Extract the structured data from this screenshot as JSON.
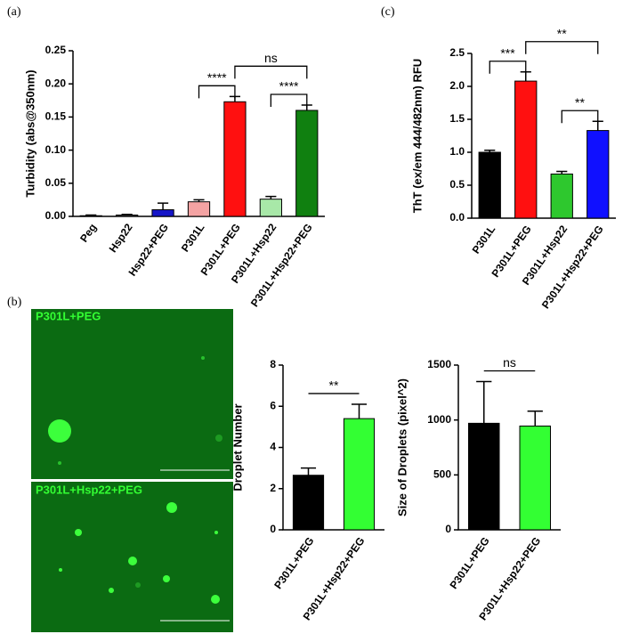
{
  "chart_data": [
    {
      "type": "bar",
      "panel": "(a)",
      "ylabel": "Turbidity (abs@350nm)",
      "categories": [
        "Peg",
        "Hsp22",
        "Hsp22+PEG",
        "P301L",
        "P301L+PEG",
        "P301L+Hsp22",
        "P301L+Hsp22+PEG"
      ],
      "values": [
        0.001,
        0.002,
        0.01,
        0.022,
        0.173,
        0.026,
        0.16
      ],
      "errors": [
        0.001,
        0.001,
        0.01,
        0.003,
        0.008,
        0.004,
        0.008
      ],
      "colors": [
        "#555555",
        "#555555",
        "#1515c8",
        "#f4a3a3",
        "#ff1010",
        "#a8e8a8",
        "#108010"
      ],
      "ylim": [
        0,
        0.25
      ],
      "yticks": [
        {
          "value": 0,
          "label": "0.00"
        },
        0.05,
        {
          "value": 0.1,
          "label": "0.10"
        },
        0.15,
        {
          "value": 0.2,
          "label": "0.20"
        },
        0.25
      ],
      "annotations": [
        {
          "text": "****",
          "between": [
            "P301L",
            "P301L+PEG"
          ]
        },
        {
          "text": "****",
          "between": [
            "P301L+Hsp22",
            "P301L+Hsp22+PEG"
          ]
        },
        {
          "text": "ns",
          "between": [
            "P301L+PEG",
            "P301L+Hsp22+PEG"
          ]
        }
      ]
    },
    {
      "type": "bar",
      "panel": "(c)",
      "ylabel": "ThT (ex/em 444/482nm) RFU",
      "categories": [
        "P301L",
        "P301L+PEG",
        "P301L+Hsp22",
        "P301L+Hsp22+PEG"
      ],
      "values": [
        1.0,
        2.08,
        0.67,
        1.33
      ],
      "errors": [
        0.03,
        0.14,
        0.04,
        0.14
      ],
      "colors": [
        "#000000",
        "#ff1010",
        "#2ec82e",
        "#1010ff"
      ],
      "ylim": [
        0,
        2.5
      ],
      "yticks": [
        {
          "value": 0,
          "label": "0.0"
        },
        0.5,
        {
          "value": 1,
          "label": "1.0"
        },
        1.5,
        {
          "value": 2,
          "label": "2.0"
        },
        2.5
      ],
      "annotations": [
        {
          "text": "***",
          "between": [
            "P301L",
            "P301L+PEG"
          ]
        },
        {
          "text": "**",
          "between": [
            "P301L+Hsp22",
            "P301L+Hsp22+PEG"
          ]
        },
        {
          "text": "**",
          "between": [
            "P301L+PEG",
            "P301L+Hsp22+PEG"
          ]
        }
      ]
    },
    {
      "type": "bar",
      "ylabel": "Droplet Number",
      "categories": [
        "P301L+PEG",
        "P301L+Hsp22+PEG"
      ],
      "values": [
        2.65,
        5.4
      ],
      "errors": [
        0.35,
        0.7
      ],
      "colors": [
        "#000000",
        "#33ff33"
      ],
      "ylim": [
        0,
        8
      ],
      "yticks": [
        0,
        2,
        4,
        6,
        8
      ],
      "annotations": [
        {
          "text": "**",
          "between": [
            "P301L+PEG",
            "P301L+Hsp22+PEG"
          ]
        }
      ]
    },
    {
      "type": "bar",
      "ylabel": "Size of Droplets (pixel^2)",
      "categories": [
        "P301L+PEG",
        "P301L+Hsp22+PEG"
      ],
      "values": [
        970,
        945
      ],
      "errors": [
        380,
        135
      ],
      "colors": [
        "#000000",
        "#33ff33"
      ],
      "ylim": [
        0,
        1500
      ],
      "yticks": [
        0,
        500,
        1000,
        1500
      ],
      "annotations": [
        {
          "text": "ns",
          "between": [
            "P301L+PEG",
            "P301L+Hsp22+PEG"
          ]
        }
      ]
    }
  ],
  "images": {
    "panel": "(b)",
    "labels": [
      "P301L+PEG",
      "P301L+Hsp22+PEG"
    ]
  }
}
